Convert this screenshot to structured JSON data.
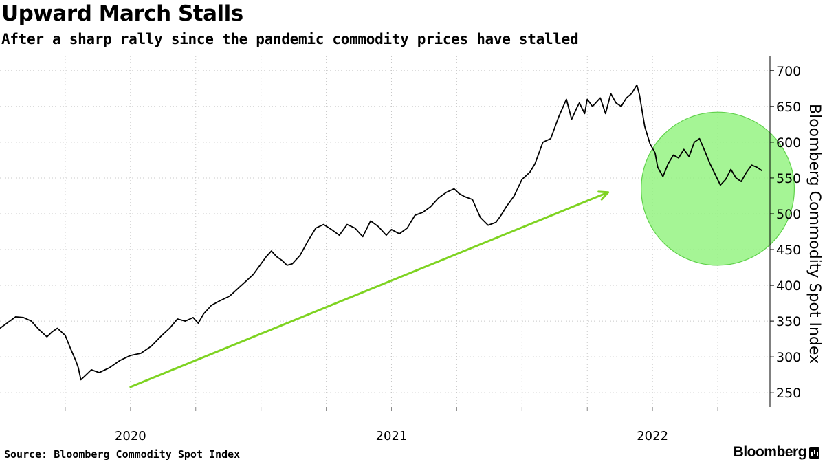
{
  "header": {
    "title": "Upward March Stalls",
    "subtitle": "After a sharp rally since the pandemic commodity prices have stalled"
  },
  "footer": {
    "source": "Source: Bloomberg Commodity Spot Index",
    "logo": "Bloomberg"
  },
  "chart_data": {
    "type": "line",
    "title": "Upward March Stalls",
    "xlabel": "",
    "ylabel": "Bloomberg Commodity Spot Index",
    "ylim": [
      230,
      720
    ],
    "xlim": [
      2019.5,
      2022.45
    ],
    "y_ticks": [
      250,
      300,
      350,
      400,
      450,
      500,
      550,
      600,
      650,
      700
    ],
    "y_tick_labels": [
      "250",
      "300",
      "350",
      "400",
      "450",
      "500",
      "550",
      "600",
      "650",
      "700"
    ],
    "x_ticks": [
      2020.0,
      2021.0,
      2022.0
    ],
    "x_tick_labels": [
      "2020",
      "2021",
      "2022"
    ],
    "grid": true,
    "y_axis_side": "right",
    "series": [
      {
        "name": "Bloomberg Commodity Spot Index",
        "color": "#000000",
        "x": [
          2019.5,
          2019.53,
          2019.56,
          2019.59,
          2019.62,
          2019.65,
          2019.68,
          2019.7,
          2019.72,
          2019.75,
          2019.77,
          2019.79,
          2019.8,
          2019.81,
          2019.83,
          2019.85,
          2019.88,
          2019.92,
          2019.96,
          2020.0,
          2020.04,
          2020.08,
          2020.12,
          2020.15,
          2020.18,
          2020.21,
          2020.24,
          2020.26,
          2020.28,
          2020.31,
          2020.34,
          2020.38,
          2020.41,
          2020.44,
          2020.47,
          2020.5,
          2020.52,
          2020.54,
          2020.56,
          2020.58,
          2020.6,
          2020.62,
          2020.65,
          2020.68,
          2020.71,
          2020.74,
          2020.77,
          2020.8,
          2020.83,
          2020.86,
          2020.89,
          2020.92,
          2020.95,
          2020.98,
          2021.0,
          2021.03,
          2021.06,
          2021.09,
          2021.12,
          2021.15,
          2021.18,
          2021.21,
          2021.24,
          2021.26,
          2021.28,
          2021.31,
          2021.34,
          2021.37,
          2021.4,
          2021.42,
          2021.44,
          2021.47,
          2021.5,
          2021.53,
          2021.55,
          2021.58,
          2021.61,
          2021.64,
          2021.67,
          2021.69,
          2021.71,
          2021.72,
          2021.74,
          2021.75,
          2021.77,
          2021.8,
          2021.82,
          2021.84,
          2021.86,
          2021.88,
          2021.9,
          2021.92,
          2021.94,
          2021.95,
          2021.97,
          2021.99,
          2022.01,
          2022.02,
          2022.04,
          2022.06,
          2022.08,
          2022.1,
          2022.12,
          2022.14,
          2022.16,
          2022.18,
          2022.2,
          2022.22,
          2022.24,
          2022.26,
          2022.28,
          2022.3,
          2022.32,
          2022.34,
          2022.36,
          2022.38,
          2022.4,
          2022.42
        ],
        "values": [
          340,
          348,
          356,
          355,
          350,
          338,
          328,
          335,
          340,
          330,
          312,
          295,
          285,
          268,
          275,
          282,
          278,
          285,
          295,
          302,
          305,
          315,
          330,
          340,
          353,
          350,
          355,
          347,
          360,
          372,
          378,
          385,
          395,
          405,
          415,
          430,
          440,
          448,
          440,
          435,
          428,
          430,
          442,
          462,
          480,
          485,
          478,
          470,
          485,
          480,
          468,
          490,
          482,
          470,
          478,
          472,
          480,
          498,
          502,
          510,
          522,
          530,
          535,
          528,
          524,
          520,
          495,
          484,
          488,
          498,
          510,
          525,
          548,
          558,
          570,
          600,
          605,
          635,
          660,
          632,
          648,
          655,
          640,
          660,
          650,
          662,
          640,
          668,
          655,
          650,
          662,
          668,
          680,
          666,
          622,
          598,
          585,
          565,
          552,
          570,
          582,
          578,
          590,
          580,
          600,
          605,
          588,
          570,
          555,
          540,
          548,
          562,
          550,
          545,
          558,
          568,
          565,
          560
        ]
      }
    ],
    "annotations": [
      {
        "type": "trend-arrow",
        "color": "#7ed321",
        "from": [
          2020.0,
          258
        ],
        "to": [
          2021.83,
          530
        ]
      },
      {
        "type": "highlight-circle",
        "color": "#8ef27a",
        "center": [
          2022.25,
          535
        ],
        "radius_y": 107
      }
    ]
  }
}
